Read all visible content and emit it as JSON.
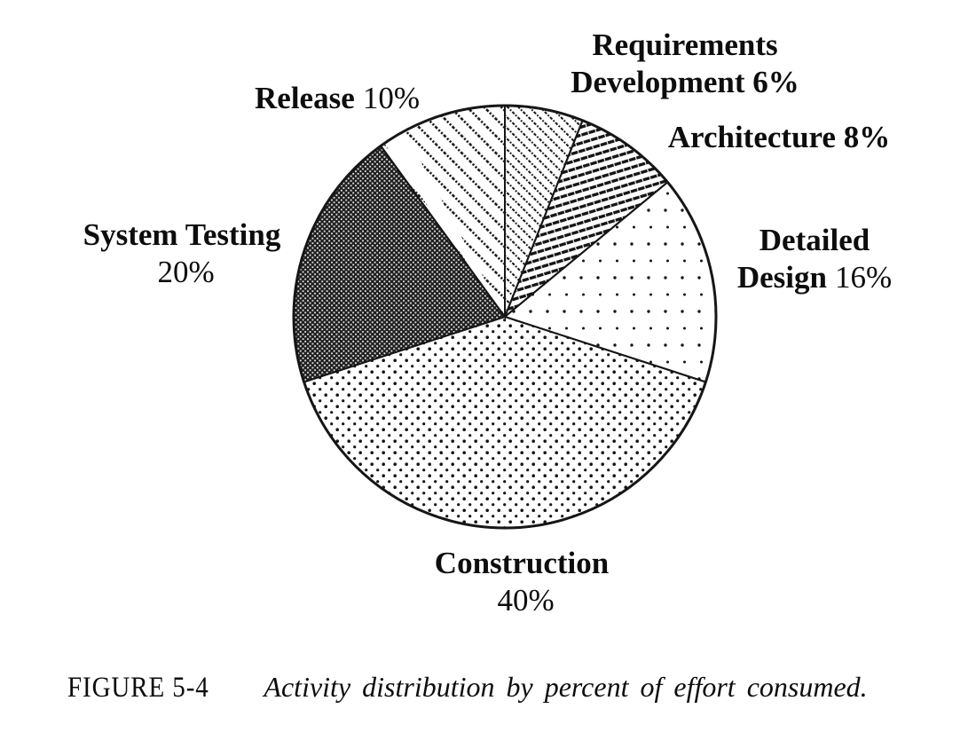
{
  "figure": {
    "caption_label": "FIGURE 5-4",
    "caption_text": "Activity distribution by percent of effort consumed."
  },
  "chart_data": {
    "type": "pie",
    "title": "Activity distribution by percent of effort consumed",
    "unit": "percent",
    "rotation": "clockwise-from-12-oclock",
    "total": 100,
    "colors": {
      "ink": "#161616",
      "background": "#ffffff",
      "dark_slice": "#1f1f1f"
    },
    "slices": [
      {
        "name": "Requirements Development",
        "value": 6,
        "pattern_id": "pat-reqdev",
        "pattern": "thin diagonal dashed hatch"
      },
      {
        "name": "Architecture",
        "value": 8,
        "pattern_id": "pat-arch",
        "pattern": "dense shallow diagonal lines"
      },
      {
        "name": "Detailed Design",
        "value": 16,
        "pattern_id": "pat-detail",
        "pattern": "sparse dot grid"
      },
      {
        "name": "Construction",
        "value": 40,
        "pattern_id": "pat-constr",
        "pattern": "medium halftone dot lattice"
      },
      {
        "name": "System Testing",
        "value": 20,
        "pattern_id": "pat-systest",
        "pattern": "dark woven crosshatch"
      },
      {
        "name": "Release",
        "value": 10,
        "pattern_id": "pat-release",
        "pattern": "wide diagonal dashed stripes"
      }
    ],
    "labels": [
      {
        "line1_bold": "Requirements",
        "line2_bold": "Development 6%"
      },
      {
        "line1_bold": "Architecture 8%"
      },
      {
        "line1_bold": "Detailed",
        "line2_bold": "Design",
        "line2_regular": "16%"
      },
      {
        "line1_bold": "Construction",
        "line2_regular": "40%"
      },
      {
        "line1_bold": "System Testing",
        "line2_regular": "20%"
      },
      {
        "line1_bold": "Release",
        "line1_regular": "10%"
      }
    ]
  }
}
